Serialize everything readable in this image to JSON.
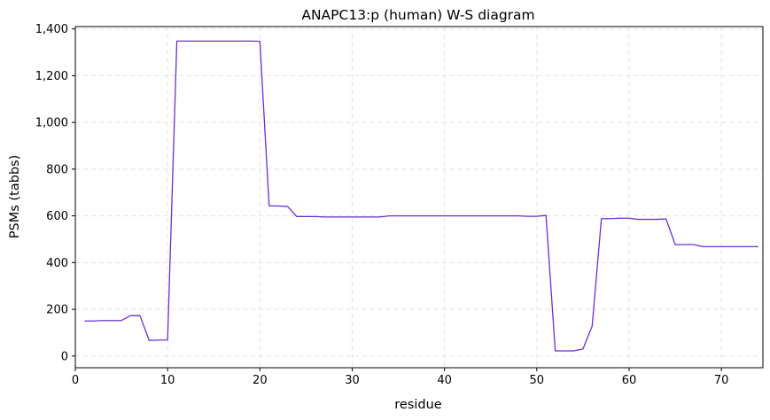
{
  "chart_data": {
    "type": "line",
    "title": "ANAPC13:p (human) W-S diagram",
    "xlabel": "residue",
    "ylabel": "PSMs (tabbs)",
    "xlim": [
      0,
      74.5
    ],
    "ylim": [
      -50,
      1410
    ],
    "xticks": [
      0,
      10,
      20,
      30,
      40,
      50,
      60,
      70
    ],
    "xtick_labels": [
      "0",
      "10",
      "20",
      "30",
      "40",
      "50",
      "60",
      "70"
    ],
    "yticks": [
      0,
      200,
      400,
      600,
      800,
      1000,
      1200,
      1400
    ],
    "ytick_labels": [
      "0",
      "200",
      "400",
      "600",
      "800",
      "1,000",
      "1,200",
      "1,400"
    ],
    "grid": true,
    "grid_style": "dashed",
    "series": [
      {
        "color": "#6a2fd1",
        "x": [
          1,
          2,
          3,
          4,
          5,
          6,
          7,
          8,
          9,
          10,
          11,
          12,
          13,
          14,
          15,
          16,
          17,
          18,
          19,
          20,
          21,
          22,
          23,
          24,
          25,
          26,
          27,
          28,
          29,
          30,
          31,
          32,
          33,
          34,
          35,
          36,
          37,
          38,
          39,
          40,
          41,
          42,
          43,
          44,
          45,
          46,
          47,
          48,
          49,
          50,
          51,
          52,
          53,
          54,
          55,
          56,
          57,
          58,
          59,
          60,
          61,
          62,
          63,
          64,
          65,
          66,
          67,
          68,
          69,
          70,
          71,
          72,
          73,
          74
        ],
        "y": [
          150,
          150,
          152,
          152,
          152,
          173,
          173,
          67,
          68,
          69,
          1348,
          1348,
          1348,
          1348,
          1348,
          1348,
          1348,
          1348,
          1348,
          1347,
          643,
          642,
          640,
          597,
          597,
          597,
          595,
          595,
          595,
          595,
          595,
          595,
          595,
          600,
          600,
          600,
          600,
          600,
          600,
          600,
          600,
          600,
          600,
          600,
          600,
          600,
          600,
          600,
          598,
          598,
          602,
          22,
          22,
          22,
          30,
          128,
          588,
          588,
          590,
          590,
          585,
          585,
          585,
          587,
          477,
          477,
          477,
          468,
          468,
          468,
          468,
          468,
          468,
          468
        ]
      }
    ]
  }
}
